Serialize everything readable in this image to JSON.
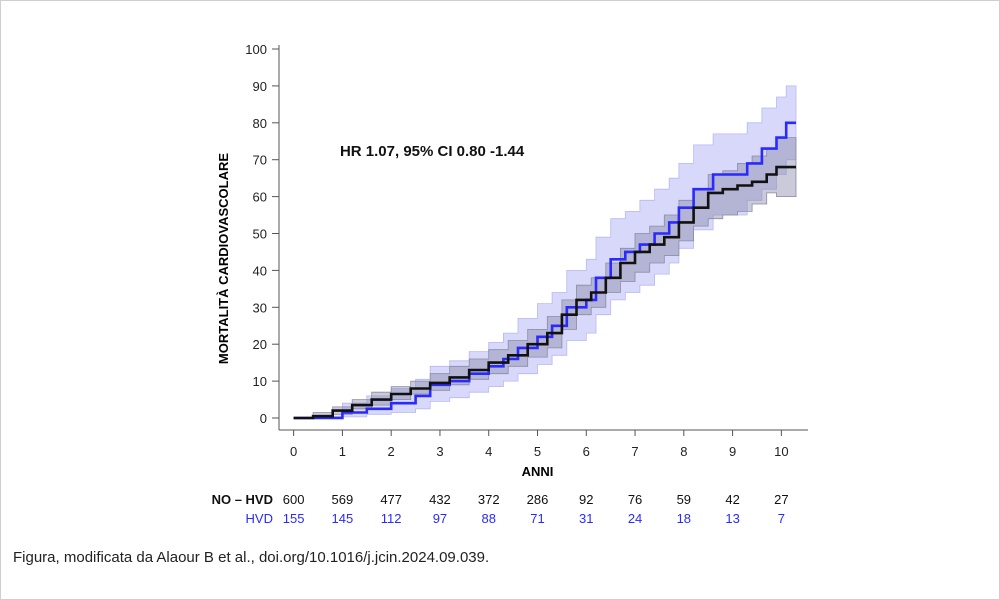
{
  "caption": "Figura, modificata da Alaour B et al., doi.org/10.1016/j.jcin.2024.09.039.",
  "chart_data": {
    "type": "line",
    "title": "",
    "annotation": "HR 1.07, 95% CI  0.80 -1.44",
    "xlabel": "ANNI",
    "ylabel": "MORTALITÀ CARDIOVASCOLARE",
    "xlim": [
      -0.3,
      10.3
    ],
    "ylim": [
      0,
      100
    ],
    "xticks": [
      "0",
      "1",
      "2",
      "3",
      "4",
      "5",
      "6",
      "7",
      "8",
      "9",
      "10"
    ],
    "yticks": [
      "0",
      "10",
      "20",
      "30",
      "40",
      "50",
      "60",
      "70",
      "80",
      "90",
      "100"
    ],
    "series": [
      {
        "name": "NO – HVD",
        "color": "#111111",
        "ci_color": "#8a8aa8",
        "x": [
          0,
          0.4,
          0.8,
          1.2,
          1.6,
          2.0,
          2.4,
          2.8,
          3.2,
          3.6,
          4.0,
          4.4,
          4.8,
          5.2,
          5.5,
          5.8,
          6.1,
          6.4,
          6.7,
          7.0,
          7.3,
          7.6,
          7.9,
          8.2,
          8.5,
          8.8,
          9.1,
          9.4,
          9.7,
          9.9,
          10.3
        ],
        "y": [
          0,
          0.5,
          2,
          3.5,
          5,
          6.5,
          8,
          9.5,
          11,
          13,
          15,
          17,
          20,
          23,
          28,
          32,
          34,
          38,
          42,
          45,
          47,
          49,
          53,
          57,
          61,
          62,
          63,
          64,
          66,
          68,
          68
        ],
        "ci_lower": [
          0,
          0.1,
          1,
          2.5,
          3.5,
          5,
          6.5,
          7.5,
          9,
          10.5,
          12,
          14,
          16.5,
          19,
          24,
          28,
          30,
          34,
          37,
          39.5,
          42,
          44,
          48,
          52,
          54,
          55,
          56,
          58,
          61,
          60,
          60
        ],
        "ci_upper": [
          0,
          1.5,
          3,
          5,
          7,
          8.5,
          10,
          12,
          14,
          16,
          18.5,
          21,
          24,
          27.5,
          32,
          36,
          38,
          42,
          46,
          50,
          52,
          55,
          59,
          62,
          66,
          67,
          69,
          71,
          73,
          76,
          76
        ]
      },
      {
        "name": "HVD",
        "color": "#2a2aff",
        "ci_color": "#b8b8f5",
        "x": [
          0,
          0.6,
          1.0,
          1.5,
          2.0,
          2.5,
          2.8,
          3.2,
          3.6,
          4.0,
          4.3,
          4.6,
          5.0,
          5.3,
          5.6,
          6.0,
          6.2,
          6.5,
          6.8,
          7.1,
          7.4,
          7.7,
          7.9,
          8.2,
          8.6,
          9.0,
          9.3,
          9.6,
          9.9,
          10.1,
          10.3
        ],
        "y": [
          0,
          0,
          1.5,
          2.5,
          4,
          6,
          9,
          10,
          12,
          14,
          16,
          19,
          22,
          25,
          30,
          32,
          38,
          43,
          45,
          47,
          50,
          53,
          57,
          62,
          66,
          66,
          69,
          73,
          76,
          80,
          80
        ],
        "ci_lower": [
          0,
          0,
          0.3,
          1,
          1.5,
          2.5,
          4.5,
          5.5,
          7,
          8.5,
          10,
          12,
          14.5,
          17,
          21,
          23,
          28,
          32,
          34,
          36,
          39,
          42,
          46,
          51,
          55,
          55,
          59,
          62,
          66,
          70,
          70
        ],
        "ci_upper": [
          0,
          0.5,
          4,
          6,
          8,
          10.5,
          14,
          15.5,
          18,
          20.5,
          23,
          27,
          31,
          34,
          40,
          43,
          49,
          54,
          56,
          59,
          62,
          65,
          69,
          74,
          77,
          77,
          80,
          84,
          87,
          90,
          90
        ]
      }
    ],
    "risk_table": {
      "rows": [
        {
          "label": "NO – HVD",
          "color": "#111111",
          "values": [
            "600",
            "569",
            "477",
            "432",
            "372",
            "286",
            "92",
            "76",
            "59",
            "42",
            "27"
          ]
        },
        {
          "label": "HVD",
          "color": "#2a2aff",
          "values": [
            "155",
            "145",
            "112",
            "97",
            "88",
            "71",
            "31",
            "24",
            "18",
            "13",
            "7"
          ]
        }
      ]
    },
    "legend": "none",
    "grid": false
  }
}
